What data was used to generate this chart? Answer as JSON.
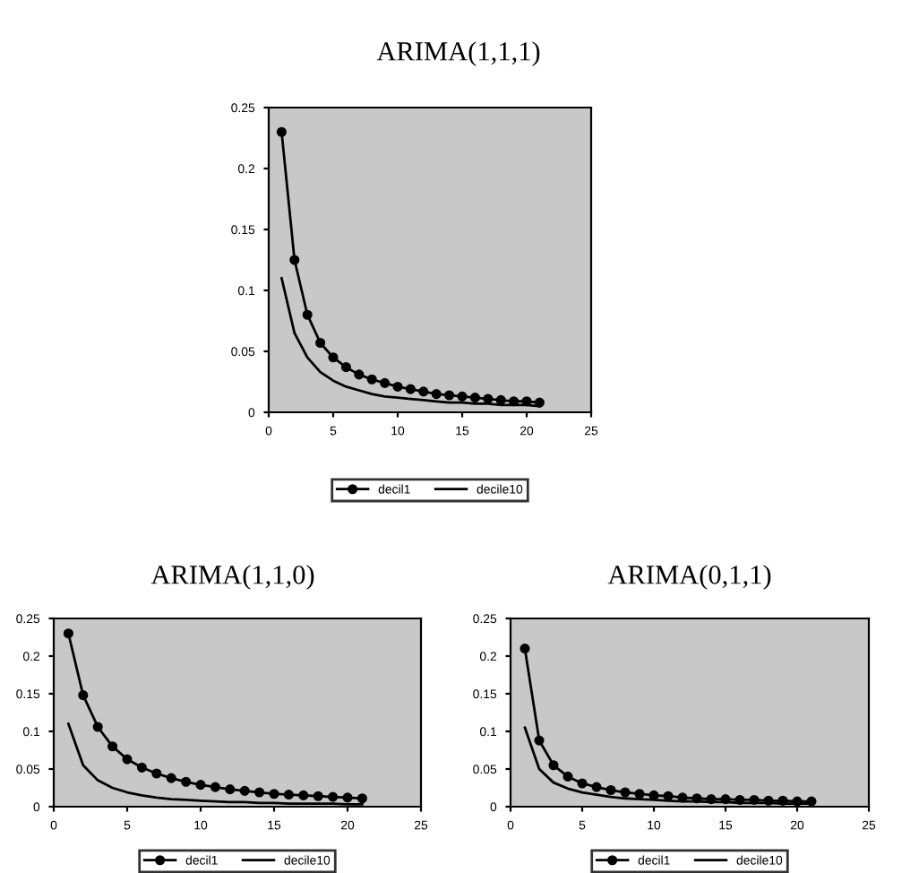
{
  "chart_data": [
    {
      "type": "line",
      "title": "ARIMA(1,1,1)",
      "x": [
        1,
        2,
        3,
        4,
        5,
        6,
        7,
        8,
        9,
        10,
        11,
        12,
        13,
        14,
        15,
        16,
        17,
        18,
        19,
        20,
        21
      ],
      "xlim": [
        0,
        25
      ],
      "xticks": [
        0,
        5,
        10,
        15,
        20,
        25
      ],
      "ylim": [
        0,
        0.25
      ],
      "yticks": [
        0,
        0.05,
        0.1,
        0.15,
        0.2,
        0.25
      ],
      "grid": false,
      "legend": "bottom",
      "series": [
        {
          "name": "decil1",
          "color": "#000000",
          "marker": "circle",
          "values": [
            0.23,
            0.125,
            0.08,
            0.057,
            0.045,
            0.037,
            0.031,
            0.027,
            0.024,
            0.021,
            0.019,
            0.017,
            0.015,
            0.014,
            0.013,
            0.012,
            0.011,
            0.01,
            0.009,
            0.009,
            0.008
          ]
        },
        {
          "name": "decile10",
          "color": "#000000",
          "marker": "none",
          "values": [
            0.11,
            0.065,
            0.045,
            0.033,
            0.026,
            0.021,
            0.018,
            0.015,
            0.013,
            0.012,
            0.011,
            0.01,
            0.009,
            0.008,
            0.008,
            0.007,
            0.007,
            0.006,
            0.006,
            0.006,
            0.005
          ]
        }
      ]
    },
    {
      "type": "line",
      "title": "ARIMA(1,1,0)",
      "x": [
        1,
        2,
        3,
        4,
        5,
        6,
        7,
        8,
        9,
        10,
        11,
        12,
        13,
        14,
        15,
        16,
        17,
        18,
        19,
        20,
        21
      ],
      "xlim": [
        0,
        25
      ],
      "xticks": [
        0,
        5,
        10,
        15,
        20,
        25
      ],
      "ylim": [
        0,
        0.25
      ],
      "yticks": [
        0,
        0.05,
        0.1,
        0.15,
        0.2,
        0.25
      ],
      "grid": false,
      "legend": "bottom",
      "series": [
        {
          "name": "decil1",
          "color": "#000000",
          "marker": "circle",
          "values": [
            0.23,
            0.148,
            0.106,
            0.08,
            0.063,
            0.052,
            0.044,
            0.038,
            0.033,
            0.029,
            0.026,
            0.023,
            0.021,
            0.019,
            0.017,
            0.016,
            0.015,
            0.014,
            0.013,
            0.012,
            0.011
          ]
        },
        {
          "name": "decile10",
          "color": "#000000",
          "marker": "none",
          "values": [
            0.11,
            0.055,
            0.035,
            0.025,
            0.019,
            0.015,
            0.012,
            0.01,
            0.009,
            0.008,
            0.007,
            0.006,
            0.006,
            0.005,
            0.005,
            0.004,
            0.004,
            0.004,
            0.004,
            0.003,
            0.003
          ]
        }
      ]
    },
    {
      "type": "line",
      "title": "ARIMA(0,1,1)",
      "x": [
        1,
        2,
        3,
        4,
        5,
        6,
        7,
        8,
        9,
        10,
        11,
        12,
        13,
        14,
        15,
        16,
        17,
        18,
        19,
        20,
        21
      ],
      "xlim": [
        0,
        25
      ],
      "xticks": [
        0,
        5,
        10,
        15,
        20,
        25
      ],
      "ylim": [
        0,
        0.25
      ],
      "yticks": [
        0,
        0.05,
        0.1,
        0.15,
        0.2,
        0.25
      ],
      "grid": false,
      "legend": "bottom",
      "series": [
        {
          "name": "decil1",
          "color": "#000000",
          "marker": "circle",
          "values": [
            0.21,
            0.088,
            0.055,
            0.04,
            0.031,
            0.026,
            0.022,
            0.019,
            0.017,
            0.015,
            0.014,
            0.012,
            0.011,
            0.01,
            0.01,
            0.009,
            0.009,
            0.008,
            0.008,
            0.007,
            0.007
          ]
        },
        {
          "name": "decile10",
          "color": "#000000",
          "marker": "none",
          "values": [
            0.105,
            0.05,
            0.032,
            0.024,
            0.019,
            0.016,
            0.013,
            0.011,
            0.01,
            0.009,
            0.008,
            0.007,
            0.007,
            0.006,
            0.006,
            0.005,
            0.005,
            0.005,
            0.004,
            0.004,
            0.004
          ]
        }
      ]
    }
  ]
}
